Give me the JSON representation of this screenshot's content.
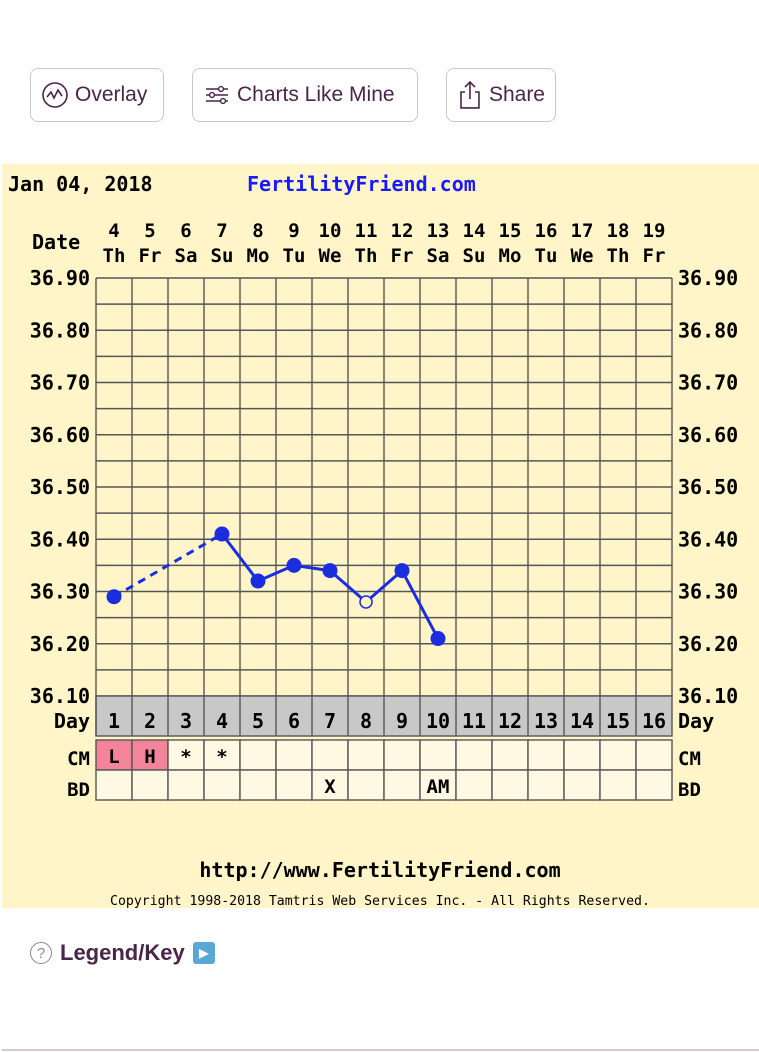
{
  "toolbar": {
    "overlay_label": "Overlay",
    "charts_like_mine_label": "Charts Like Mine",
    "share_label": "Share"
  },
  "chart": {
    "date_header": "Jan 04, 2018",
    "site_name": "FertilityFriend.com",
    "url": "http://www.FertilityFriend.com",
    "copyright": "Copyright 1998-2018 Tamtris Web Services Inc. - All Rights Reserved.",
    "row_labels": {
      "date": "Date",
      "day": "Day",
      "cm": "CM",
      "bd": "BD"
    }
  },
  "chart_data": {
    "type": "line",
    "title": "Jan 04, 2018",
    "dates": [
      "4",
      "5",
      "6",
      "7",
      "8",
      "9",
      "10",
      "11",
      "12",
      "13",
      "14",
      "15",
      "16",
      "17",
      "18",
      "19"
    ],
    "weekdays": [
      "Th",
      "Fr",
      "Sa",
      "Su",
      "Mo",
      "Tu",
      "We",
      "Th",
      "Fr",
      "Sa",
      "Su",
      "Mo",
      "Tu",
      "We",
      "Th",
      "Fr"
    ],
    "cycle_days": [
      "1",
      "2",
      "3",
      "4",
      "5",
      "6",
      "7",
      "8",
      "9",
      "10",
      "11",
      "12",
      "13",
      "14",
      "15",
      "16"
    ],
    "y_ticks": [
      "36.90",
      "36.80",
      "36.70",
      "36.60",
      "36.50",
      "36.40",
      "36.30",
      "36.20",
      "36.10"
    ],
    "ylim": [
      36.1,
      36.9
    ],
    "temps": [
      36.29,
      null,
      null,
      36.41,
      36.32,
      36.35,
      36.34,
      36.28,
      36.34,
      36.21,
      null,
      null,
      null,
      null,
      null,
      null
    ],
    "open_points": [
      8
    ],
    "cm": [
      "L",
      "H",
      "*",
      "*",
      "",
      "",
      "",
      "",
      "",
      "",
      "",
      "",
      "",
      "",
      "",
      ""
    ],
    "cm_highlight": [
      1,
      2
    ],
    "bd": [
      "",
      "",
      "",
      "",
      "",
      "",
      "X",
      "",
      "",
      "AM",
      "",
      "",
      "",
      "",
      "",
      ""
    ],
    "colors": {
      "line": "#1a2ee0",
      "grid": "#555555",
      "background": "#fff5c8",
      "cm_highlight": "#f4849a",
      "day_row": "#c8c8c8",
      "site": "#1a1aff"
    }
  },
  "legend": {
    "label": "Legend/Key"
  }
}
